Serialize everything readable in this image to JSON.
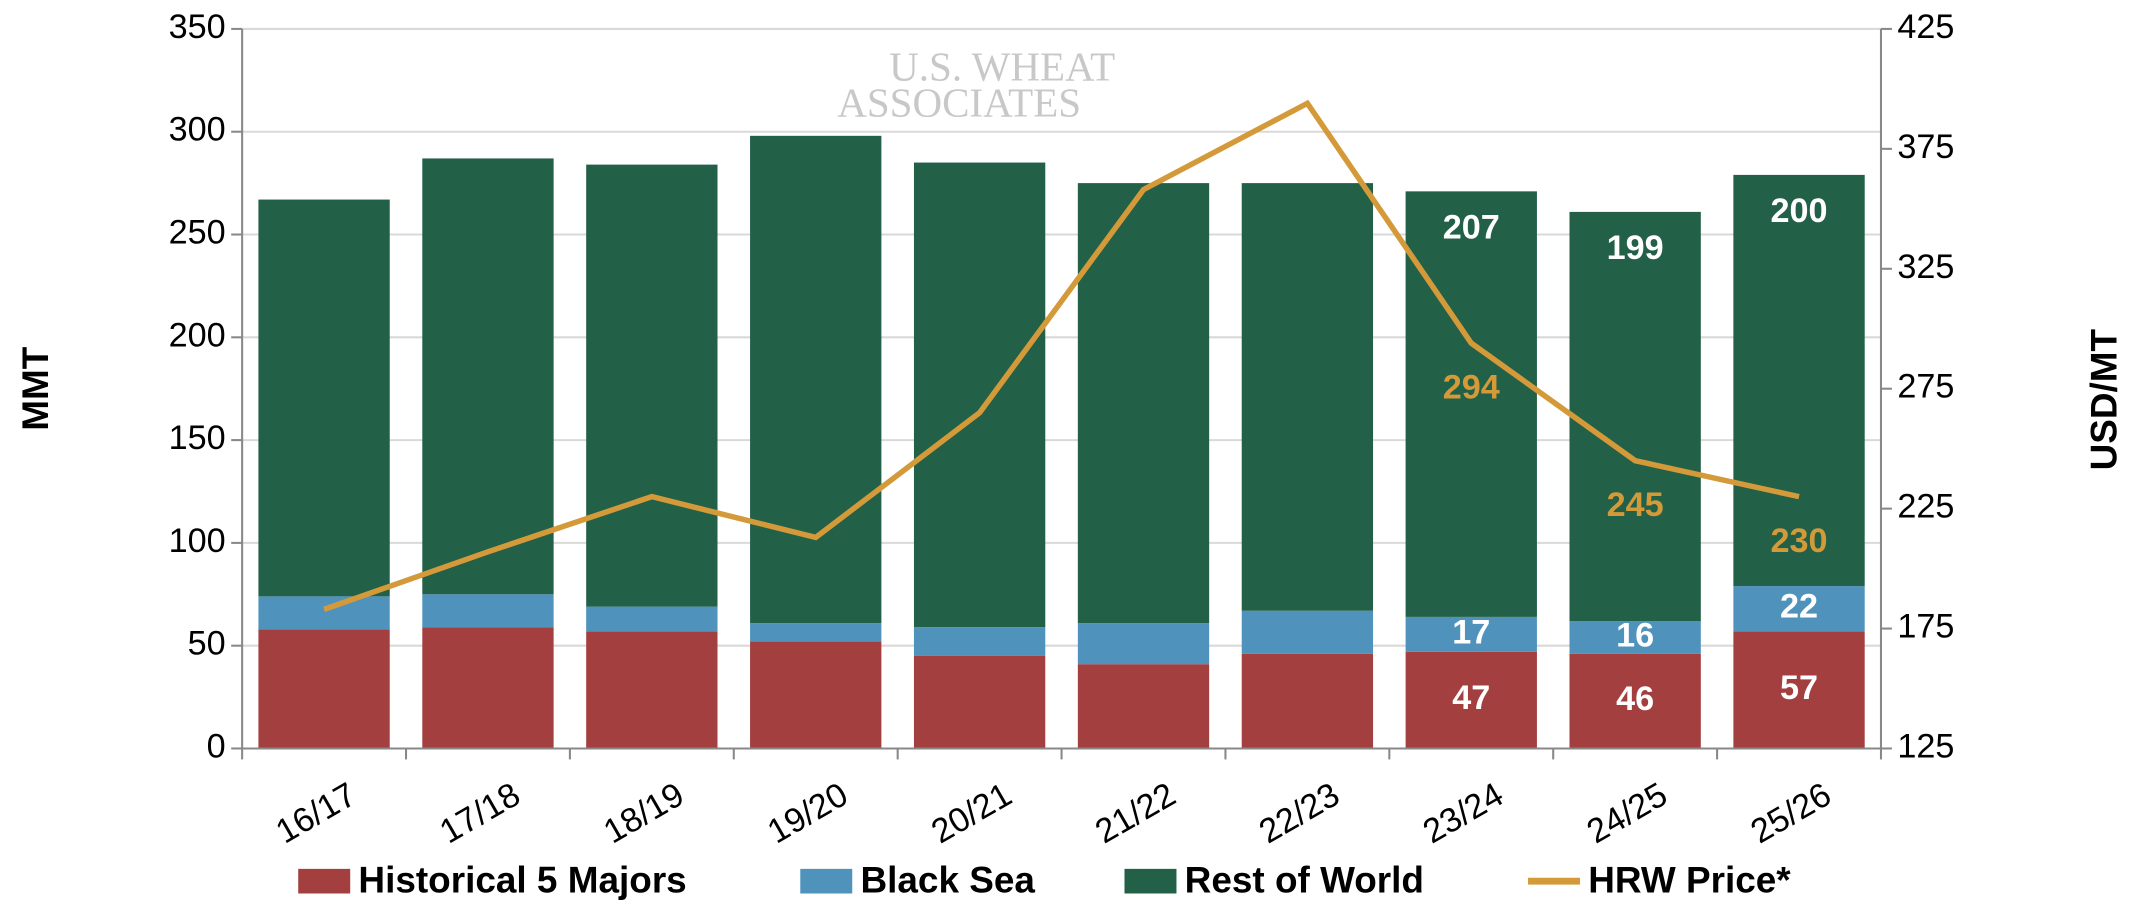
{
  "chart_data": {
    "type": "bar",
    "watermark": [
      "U.S. WHEAT",
      "ASSOCIATES"
    ],
    "ylabel": "MMT",
    "y2label": "USD/MT",
    "categories": [
      "16/17",
      "17/18",
      "18/19",
      "19/20",
      "20/21",
      "21/22",
      "22/23",
      "23/24",
      "24/25",
      "25/26"
    ],
    "stacked": true,
    "series": [
      {
        "name": "Historical 5 Majors",
        "color": "#a3403f",
        "values": [
          58,
          59,
          57,
          52,
          45,
          41,
          46,
          47,
          46,
          57
        ],
        "value_labels": [
          null,
          null,
          null,
          null,
          null,
          null,
          null,
          "47",
          "46",
          "57"
        ]
      },
      {
        "name": "Black Sea",
        "color": "#4f93bd",
        "values": [
          16,
          16,
          12,
          9,
          14,
          20,
          21,
          17,
          16,
          22
        ],
        "value_labels": [
          null,
          null,
          null,
          null,
          null,
          null,
          null,
          "17",
          "16",
          "22"
        ]
      },
      {
        "name": "Rest of World",
        "color": "#226047",
        "values": [
          193,
          212,
          215,
          237,
          226,
          214,
          208,
          207,
          199,
          200
        ],
        "value_labels": [
          null,
          null,
          null,
          null,
          null,
          null,
          null,
          "207",
          "199",
          "200"
        ]
      },
      {
        "name": "HRW Price*",
        "color": "#d49a3a",
        "type": "line",
        "axis": "y2",
        "values": [
          183,
          207,
          230,
          213,
          265,
          358,
          394,
          294,
          245,
          230
        ],
        "value_labels": [
          null,
          null,
          null,
          null,
          null,
          null,
          null,
          "294",
          "245",
          "230"
        ]
      }
    ],
    "ylim": [
      0,
      350
    ],
    "yticks": [
      0,
      50,
      100,
      150,
      200,
      250,
      300,
      350
    ],
    "y2lim": [
      125,
      425
    ],
    "y2ticks": [
      125,
      175,
      225,
      275,
      325,
      375,
      425
    ],
    "grid": true
  }
}
